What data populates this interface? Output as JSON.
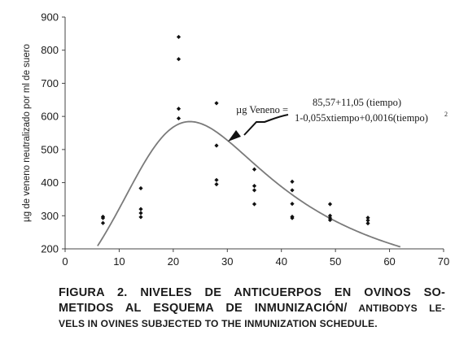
{
  "chart_data": {
    "type": "scatter",
    "title": "",
    "xlabel": "",
    "ylabel": "µg de veneno neutralizado por ml de suero",
    "xlim": [
      0,
      70
    ],
    "ylim": [
      200,
      900
    ],
    "xticks": [
      "0",
      "10",
      "20",
      "30",
      "40",
      "50",
      "60",
      "70"
    ],
    "yticks": [
      "200",
      "300",
      "400",
      "500",
      "600",
      "700",
      "800",
      "900"
    ],
    "grid": false,
    "points": [
      {
        "x": 7,
        "y": 297
      },
      {
        "x": 7,
        "y": 293
      },
      {
        "x": 7,
        "y": 278
      },
      {
        "x": 14,
        "y": 383
      },
      {
        "x": 14,
        "y": 320
      },
      {
        "x": 14,
        "y": 308
      },
      {
        "x": 14,
        "y": 296
      },
      {
        "x": 21,
        "y": 840
      },
      {
        "x": 21,
        "y": 773
      },
      {
        "x": 21,
        "y": 623
      },
      {
        "x": 21,
        "y": 594
      },
      {
        "x": 28,
        "y": 640
      },
      {
        "x": 28,
        "y": 512
      },
      {
        "x": 28,
        "y": 408
      },
      {
        "x": 28,
        "y": 395
      },
      {
        "x": 35,
        "y": 440
      },
      {
        "x": 35,
        "y": 390
      },
      {
        "x": 35,
        "y": 377
      },
      {
        "x": 35,
        "y": 335
      },
      {
        "x": 42,
        "y": 403
      },
      {
        "x": 42,
        "y": 377
      },
      {
        "x": 42,
        "y": 336
      },
      {
        "x": 42,
        "y": 297
      },
      {
        "x": 42,
        "y": 293
      },
      {
        "x": 49,
        "y": 335
      },
      {
        "x": 49,
        "y": 300
      },
      {
        "x": 49,
        "y": 293
      },
      {
        "x": 49,
        "y": 287
      },
      {
        "x": 56,
        "y": 294
      },
      {
        "x": 56,
        "y": 286
      },
      {
        "x": 56,
        "y": 277
      }
    ],
    "fit_curve": {
      "x_range": [
        6,
        62
      ],
      "model": {
        "numerator": [
          85.57,
          11.05
        ],
        "denominator": [
          1,
          -0.055,
          0.0016
        ]
      }
    },
    "annotation": {
      "lhs": "µg Veneno =",
      "numerator": "85,57+11,05 (tiempo)",
      "denominator": "1-0,055xtiempo+0,0016(tiempo)",
      "exponent": "2"
    },
    "colors": {
      "curve": "#7a7a7a",
      "points": "#111111",
      "axis": "#444444"
    }
  },
  "caption": {
    "line1": "FIGURA 2. NIVELES DE ANTICUERPOS EN OVINOS SO-",
    "line2_es": "METIDOS AL ESQUEMA DE INMUNIZACIÓN/",
    "line2_en": " ANTIBODYS LE-",
    "line3": "VELS IN OVINES SUBJECTED TO THE INMUNIZATION SCHEDULE."
  }
}
